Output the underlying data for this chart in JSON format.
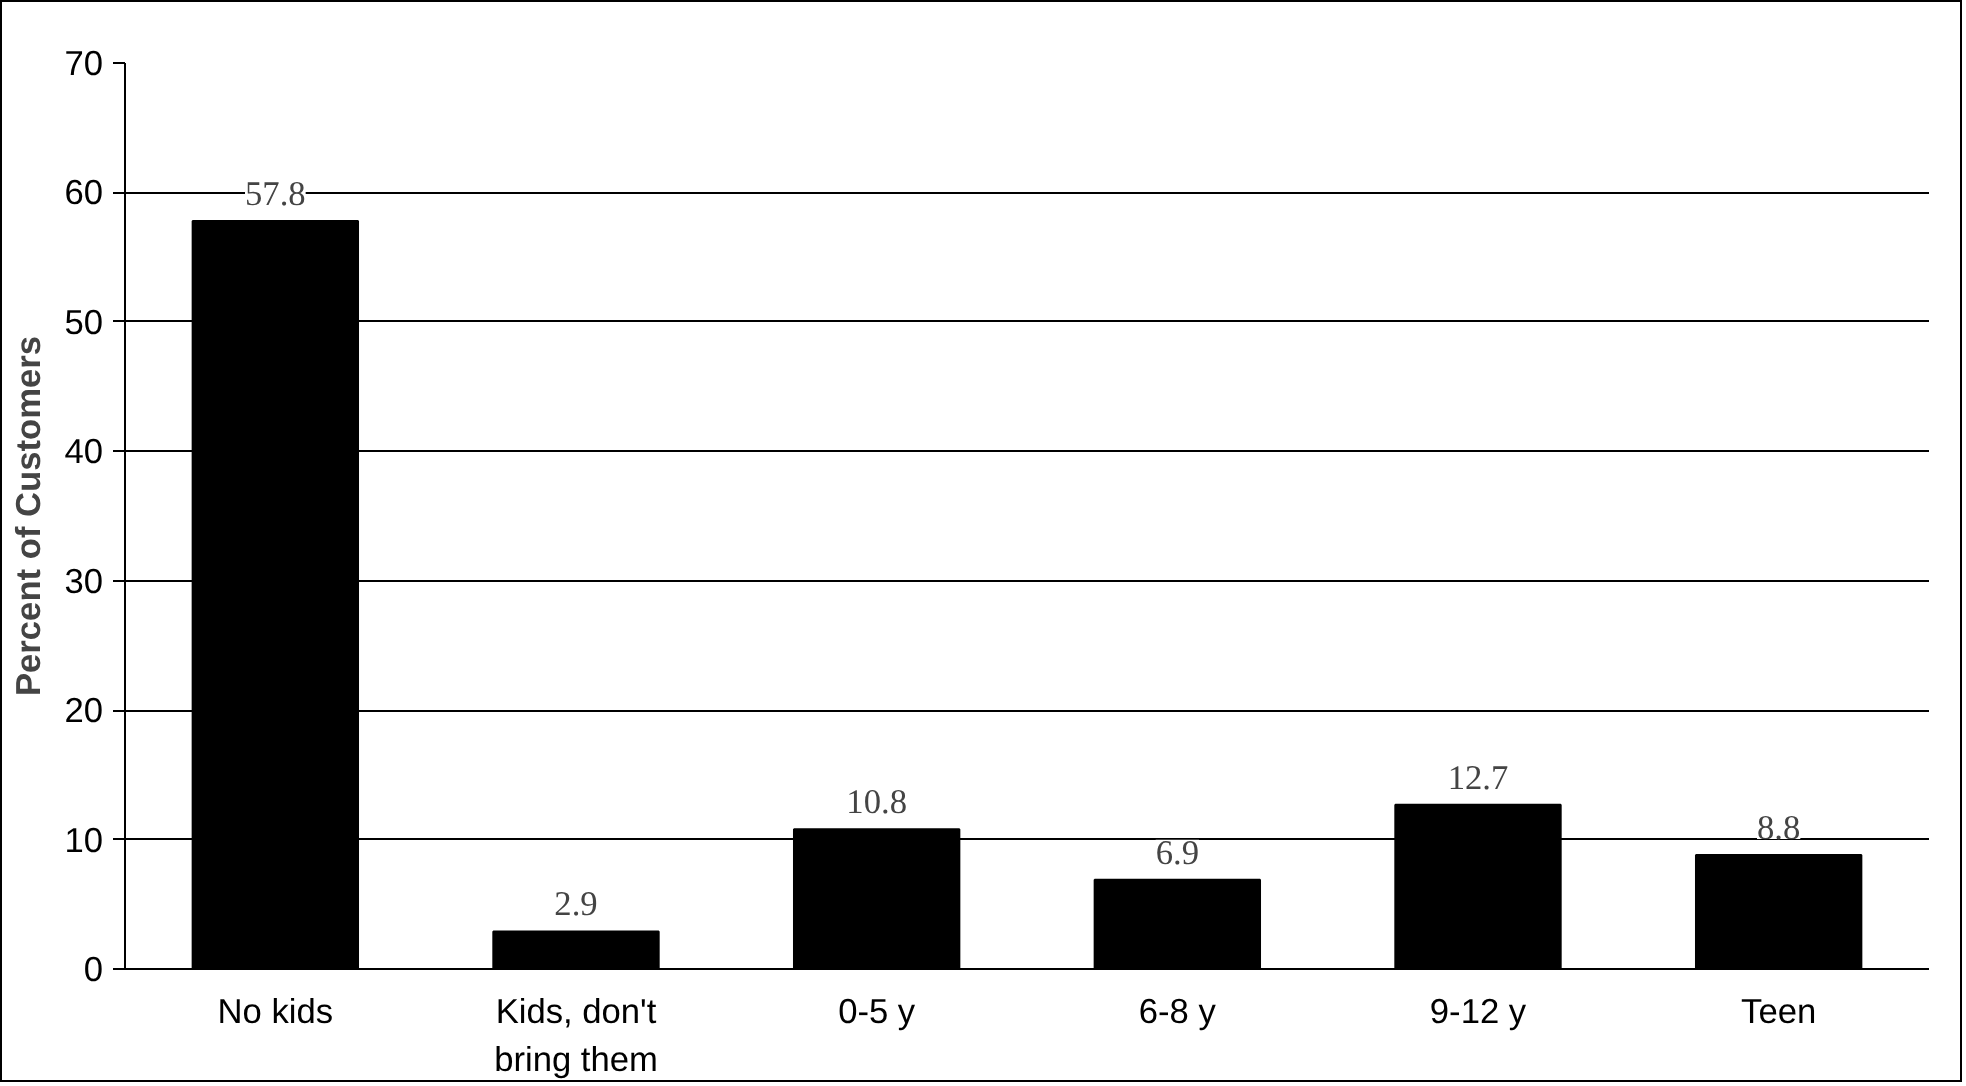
{
  "chart_data": {
    "type": "bar",
    "ylabel": "Percent of Customers",
    "categories": [
      "No kids",
      "Kids, don't bring them",
      "0-5 y",
      "6-8 y",
      "9-12 y",
      "Teen"
    ],
    "values": [
      57.8,
      2.9,
      10.8,
      6.9,
      12.7,
      8.8
    ],
    "color": "#000000",
    "ylim": [
      0,
      70
    ],
    "yticks": [
      0,
      10,
      20,
      30,
      40,
      50,
      60,
      70
    ],
    "grid": "y",
    "data_labels": true
  }
}
